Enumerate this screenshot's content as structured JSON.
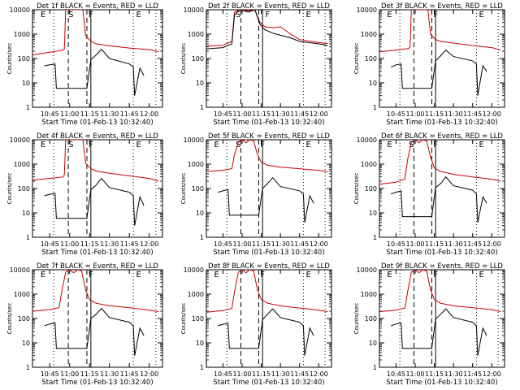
{
  "figure": {
    "ylabel": "Counts/sec",
    "xlabel": "Start Time (01-Feb-13 10:32:40)",
    "time_ticks": [
      "10:45",
      "11:00",
      "11:15",
      "11:30",
      "11:45",
      "12:00"
    ],
    "y_ticks": [
      "1",
      "10",
      "100",
      "1000",
      "10000"
    ],
    "colors": {
      "events": "#000000",
      "lld": "#cc0000",
      "axes": "#000000",
      "background": "#ffffff"
    }
  },
  "chart_data": [
    {
      "type": "line",
      "title": "Det 1f BLACK = Events, RED = LLD",
      "xlabel": "Start Time (01-Feb-13 10:32:40)",
      "ylabel": "Counts/sec",
      "x_range": [
        "10:32",
        "12:10"
      ],
      "y_range": [
        1,
        10000
      ],
      "y_scale": "log",
      "grid": false,
      "interval_labels": [
        {
          "letter": "E",
          "time": "10:40"
        },
        {
          "letter": "S",
          "time": "11:01"
        },
        {
          "letter": "F",
          "time": "11:16"
        },
        {
          "letter": "E",
          "time": "11:52"
        }
      ],
      "dotted_lines": [
        "10:48",
        "11:48",
        "12:05"
      ],
      "dashed_lines": [
        "10:59",
        "11:13"
      ],
      "solid_lines": [
        "11:16"
      ],
      "series": [
        {
          "color": "red",
          "x": [
            "10:32",
            "10:45",
            "10:55",
            "10:56",
            "10:57",
            "11:10",
            "11:12",
            "11:16",
            "11:20",
            "11:30",
            "11:45",
            "12:00",
            "12:07"
          ],
          "y": [
            140,
            180,
            220,
            250,
            12000,
            12000,
            900,
            500,
            400,
            330,
            270,
            230,
            190
          ]
        },
        {
          "color": "black",
          "x": [
            "10:41",
            "10:45",
            "10:49",
            "10:50",
            "11:13",
            "11:16",
            "11:20",
            "11:24",
            "11:30",
            "11:45",
            "11:48",
            "11:49",
            "11:53",
            "11:56"
          ],
          "y": [
            50,
            55,
            60,
            6,
            6,
            90,
            140,
            240,
            100,
            60,
            45,
            3,
            40,
            20
          ]
        }
      ]
    },
    {
      "type": "line",
      "title": "Det 2f BLACK = Events, RED = LLD",
      "xlabel": "Start Time (01-Feb-13 10:32:40)",
      "ylabel": "Counts/sec",
      "x_range": [
        "10:32",
        "12:10"
      ],
      "y_range": [
        1,
        10000
      ],
      "y_scale": "log",
      "grid": false,
      "interval_labels": [
        {
          "letter": "S",
          "time": "10:57"
        },
        {
          "letter": "F",
          "time": "11:20"
        },
        {
          "letter": "E",
          "time": "11:52"
        }
      ],
      "dotted_lines": [
        "10:48",
        "11:48",
        "12:05"
      ],
      "dashed_lines": [
        "10:59",
        "11:13"
      ],
      "solid_lines": [
        "11:16"
      ],
      "series": [
        {
          "color": "red",
          "x": [
            "10:32",
            "10:45",
            "10:52",
            "10:54",
            "10:58",
            "11:05",
            "11:10",
            "11:14",
            "11:18",
            "11:24",
            "11:30",
            "11:38",
            "11:45",
            "12:00",
            "12:07"
          ],
          "y": [
            320,
            350,
            500,
            8000,
            14000,
            9000,
            12000,
            3000,
            2000,
            1800,
            2000,
            1000,
            600,
            450,
            400
          ]
        },
        {
          "color": "black",
          "x": [
            "10:32",
            "10:45",
            "10:52",
            "10:54",
            "10:58",
            "11:05",
            "11:10",
            "11:14",
            "11:18",
            "11:24",
            "11:30",
            "11:38",
            "11:45",
            "12:00",
            "12:07"
          ],
          "y": [
            250,
            280,
            400,
            6000,
            12000,
            8000,
            10000,
            2500,
            1500,
            1100,
            900,
            700,
            500,
            400,
            340
          ]
        }
      ]
    },
    {
      "type": "line",
      "title": "Det 3f BLACK = Events, RED = LLD",
      "xlabel": "Start Time (01-Feb-13 10:32:40)",
      "ylabel": "Counts/sec",
      "x_range": [
        "10:32",
        "12:10"
      ],
      "y_range": [
        1,
        10000
      ],
      "y_scale": "log",
      "grid": false,
      "interval_labels": [
        {
          "letter": "E",
          "time": "10:40"
        },
        {
          "letter": "F",
          "time": "11:16"
        },
        {
          "letter": "E",
          "time": "11:52"
        }
      ],
      "dotted_lines": [
        "10:48",
        "11:48",
        "12:05"
      ],
      "dashed_lines": [
        "10:59",
        "11:13"
      ],
      "solid_lines": [
        "11:16"
      ],
      "series": [
        {
          "color": "red",
          "x": [
            "10:32",
            "10:45",
            "10:55",
            "10:56",
            "10:57",
            "11:10",
            "11:12",
            "11:16",
            "11:20",
            "11:30",
            "11:45",
            "12:00",
            "12:07"
          ],
          "y": [
            190,
            220,
            260,
            300,
            12000,
            12000,
            1000,
            600,
            500,
            430,
            340,
            280,
            220
          ]
        },
        {
          "color": "black",
          "x": [
            "10:41",
            "10:45",
            "10:49",
            "10:50",
            "11:13",
            "11:16",
            "11:20",
            "11:24",
            "11:30",
            "11:45",
            "11:48",
            "11:49",
            "11:53",
            "11:56"
          ],
          "y": [
            45,
            55,
            60,
            6,
            6,
            80,
            130,
            220,
            120,
            80,
            60,
            3,
            50,
            30
          ]
        }
      ]
    },
    {
      "type": "line",
      "title": "Det 4f BLACK = Events, RED = LLD",
      "xlabel": "Start Time (01-Feb-13 10:32:40)",
      "ylabel": "Counts/sec",
      "x_range": [
        "10:32",
        "12:10"
      ],
      "y_range": [
        1,
        10000
      ],
      "y_scale": "log",
      "grid": false,
      "interval_labels": [
        {
          "letter": "E",
          "time": "10:40"
        },
        {
          "letter": "S",
          "time": "11:01"
        },
        {
          "letter": "F",
          "time": "11:16"
        },
        {
          "letter": "E",
          "time": "11:52"
        }
      ],
      "dotted_lines": [
        "10:48",
        "11:48",
        "12:05"
      ],
      "dashed_lines": [
        "10:59",
        "11:13"
      ],
      "solid_lines": [
        "11:16"
      ],
      "series": [
        {
          "color": "red",
          "x": [
            "10:32",
            "10:45",
            "10:55",
            "10:56",
            "10:57",
            "11:10",
            "11:12",
            "11:16",
            "11:20",
            "11:30",
            "11:45",
            "12:00",
            "12:07"
          ],
          "y": [
            220,
            260,
            300,
            350,
            12000,
            12000,
            1100,
            650,
            520,
            420,
            330,
            260,
            200
          ]
        },
        {
          "color": "black",
          "x": [
            "10:41",
            "10:45",
            "10:49",
            "10:50",
            "11:13",
            "11:16",
            "11:20",
            "11:24",
            "11:30",
            "11:45",
            "11:48",
            "11:49",
            "11:53",
            "11:56"
          ],
          "y": [
            50,
            58,
            62,
            6,
            6,
            90,
            140,
            260,
            110,
            70,
            50,
            3,
            45,
            20
          ]
        }
      ]
    },
    {
      "type": "line",
      "title": "Det 5f BLACK = Events, RED = LLD",
      "xlabel": "Start Time (01-Feb-13 10:32:40)",
      "ylabel": "Counts/sec",
      "x_range": [
        "10:32",
        "12:10"
      ],
      "y_range": [
        1,
        10000
      ],
      "y_scale": "log",
      "grid": false,
      "interval_labels": [
        {
          "letter": "E",
          "time": "10:40"
        },
        {
          "letter": "S",
          "time": "10:57"
        },
        {
          "letter": "F",
          "time": "11:16"
        },
        {
          "letter": "E",
          "time": "11:52"
        }
      ],
      "dotted_lines": [
        "10:48",
        "11:48",
        "12:05"
      ],
      "dashed_lines": [
        "10:59",
        "11:13"
      ],
      "solid_lines": [
        "11:16"
      ],
      "series": [
        {
          "color": "red",
          "x": [
            "10:32",
            "10:45",
            "10:52",
            "10:54",
            "10:57",
            "11:00",
            "11:03",
            "11:06",
            "11:09",
            "11:12",
            "11:15",
            "11:20",
            "11:30",
            "11:45",
            "12:00",
            "12:07"
          ],
          "y": [
            500,
            560,
            650,
            2500,
            8000,
            11000,
            7500,
            11000,
            9000,
            2500,
            1200,
            900,
            750,
            650,
            550,
            500
          ]
        },
        {
          "color": "black",
          "x": [
            "10:41",
            "10:45",
            "10:49",
            "10:50",
            "11:13",
            "11:16",
            "11:20",
            "11:24",
            "11:30",
            "11:45",
            "11:48",
            "11:49",
            "11:53",
            "11:56"
          ],
          "y": [
            70,
            80,
            90,
            8,
            8,
            100,
            160,
            280,
            120,
            80,
            60,
            4,
            50,
            25
          ]
        }
      ]
    },
    {
      "type": "line",
      "title": "Det 6f BLACK = Events, RED = LLD",
      "xlabel": "Start Time (01-Feb-13 10:32:40)",
      "ylabel": "Counts/sec",
      "x_range": [
        "10:32",
        "12:10"
      ],
      "y_range": [
        1,
        10000
      ],
      "y_scale": "log",
      "grid": false,
      "interval_labels": [
        {
          "letter": "E",
          "time": "10:40"
        },
        {
          "letter": "S",
          "time": "10:57"
        },
        {
          "letter": "F",
          "time": "11:16"
        },
        {
          "letter": "E",
          "time": "11:52"
        }
      ],
      "dotted_lines": [
        "10:48",
        "11:48",
        "12:05"
      ],
      "dashed_lines": [
        "10:59",
        "11:13"
      ],
      "solid_lines": [
        "11:16"
      ],
      "series": [
        {
          "color": "red",
          "x": [
            "10:32",
            "10:45",
            "10:52",
            "10:54",
            "10:57",
            "11:00",
            "11:03",
            "11:06",
            "11:09",
            "11:12",
            "11:15",
            "11:20",
            "11:30",
            "11:45",
            "12:00",
            "12:07"
          ],
          "y": [
            150,
            180,
            250,
            1500,
            8000,
            11000,
            7500,
            11000,
            9000,
            2000,
            700,
            500,
            380,
            300,
            240,
            200
          ]
        },
        {
          "color": "black",
          "x": [
            "10:41",
            "10:45",
            "10:49",
            "10:50",
            "11:13",
            "11:16",
            "11:20",
            "11:24",
            "11:30",
            "11:45",
            "11:48",
            "11:49",
            "11:53",
            "11:56"
          ],
          "y": [
            60,
            70,
            80,
            7,
            7,
            110,
            160,
            300,
            130,
            85,
            60,
            4,
            45,
            25
          ]
        }
      ]
    },
    {
      "type": "line",
      "title": "Det 7f BLACK = Events, RED = LLD",
      "xlabel": "Start Time (01-Feb-13 10:32:40)",
      "ylabel": "Counts/sec",
      "x_range": [
        "10:32",
        "12:10"
      ],
      "y_range": [
        1,
        10000
      ],
      "y_scale": "log",
      "grid": false,
      "interval_labels": [
        {
          "letter": "E",
          "time": "10:40"
        },
        {
          "letter": "F",
          "time": "11:16"
        },
        {
          "letter": "E",
          "time": "11:52"
        }
      ],
      "dotted_lines": [
        "10:48",
        "11:48",
        "12:05"
      ],
      "dashed_lines": [
        "10:59",
        "11:13"
      ],
      "solid_lines": [
        "11:16"
      ],
      "series": [
        {
          "color": "red",
          "x": [
            "10:32",
            "10:45",
            "10:52",
            "10:54",
            "10:57",
            "11:00",
            "11:03",
            "11:06",
            "11:09",
            "11:12",
            "11:15",
            "11:20",
            "11:30",
            "11:45",
            "12:00",
            "12:07"
          ],
          "y": [
            200,
            230,
            280,
            1200,
            8000,
            11000,
            7500,
            11000,
            9000,
            1500,
            600,
            420,
            330,
            280,
            220,
            190
          ]
        },
        {
          "color": "black",
          "x": [
            "10:41",
            "10:45",
            "10:49",
            "10:50",
            "11:13",
            "11:16",
            "11:20",
            "11:24",
            "11:30",
            "11:45",
            "11:48",
            "11:49",
            "11:53",
            "11:56"
          ],
          "y": [
            50,
            60,
            65,
            6,
            6,
            100,
            150,
            260,
            110,
            70,
            50,
            3,
            40,
            20
          ]
        }
      ]
    },
    {
      "type": "line",
      "title": "Det 8f BLACK = Events, RED = LLD",
      "xlabel": "Start Time (01-Feb-13 10:32:40)",
      "ylabel": "Counts/sec",
      "x_range": [
        "10:32",
        "12:10"
      ],
      "y_range": [
        1,
        10000
      ],
      "y_scale": "log",
      "grid": false,
      "interval_labels": [
        {
          "letter": "E",
          "time": "10:40"
        },
        {
          "letter": "F",
          "time": "11:16"
        },
        {
          "letter": "E",
          "time": "11:52"
        }
      ],
      "dotted_lines": [
        "10:48",
        "11:48",
        "12:05"
      ],
      "dashed_lines": [
        "10:59",
        "11:13"
      ],
      "solid_lines": [
        "11:16"
      ],
      "series": [
        {
          "color": "red",
          "x": [
            "10:32",
            "10:45",
            "10:52",
            "10:54",
            "10:57",
            "11:00",
            "11:03",
            "11:06",
            "11:09",
            "11:12",
            "11:15",
            "11:20",
            "11:30",
            "11:45",
            "12:00",
            "12:07"
          ],
          "y": [
            180,
            210,
            260,
            1200,
            8000,
            11000,
            7500,
            11000,
            9000,
            1500,
            600,
            420,
            330,
            270,
            220,
            190
          ]
        },
        {
          "color": "black",
          "x": [
            "10:41",
            "10:45",
            "10:49",
            "10:50",
            "11:13",
            "11:16",
            "11:20",
            "11:24",
            "11:30",
            "11:45",
            "11:48",
            "11:49",
            "11:53",
            "11:56"
          ],
          "y": [
            50,
            58,
            62,
            6,
            6,
            90,
            150,
            250,
            110,
            70,
            50,
            3,
            40,
            20
          ]
        }
      ]
    },
    {
      "type": "line",
      "title": "Det 9f BLACK = Events, RED = LLD",
      "xlabel": "Start Time (01-Feb-13 10:32:40)",
      "ylabel": "Counts/sec",
      "x_range": [
        "10:32",
        "12:10"
      ],
      "y_range": [
        1,
        10000
      ],
      "y_scale": "log",
      "grid": false,
      "interval_labels": [
        {
          "letter": "E",
          "time": "10:40"
        },
        {
          "letter": "F",
          "time": "11:16"
        },
        {
          "letter": "E",
          "time": "11:52"
        }
      ],
      "dotted_lines": [
        "10:48",
        "11:48",
        "12:05"
      ],
      "dashed_lines": [
        "10:59",
        "11:13"
      ],
      "solid_lines": [
        "11:16"
      ],
      "series": [
        {
          "color": "red",
          "x": [
            "10:32",
            "10:45",
            "10:52",
            "10:54",
            "10:57",
            "11:00",
            "11:03",
            "11:06",
            "11:09",
            "11:12",
            "11:15",
            "11:20",
            "11:30",
            "11:45",
            "12:00",
            "12:07"
          ],
          "y": [
            190,
            220,
            270,
            1200,
            8000,
            11000,
            7500,
            11000,
            9000,
            1500,
            600,
            420,
            330,
            280,
            230,
            190
          ]
        },
        {
          "color": "black",
          "x": [
            "10:41",
            "10:45",
            "10:49",
            "10:50",
            "11:13",
            "11:16",
            "11:20",
            "11:24",
            "11:30",
            "11:45",
            "11:48",
            "11:49",
            "11:53",
            "11:56"
          ],
          "y": [
            50,
            60,
            65,
            6,
            6,
            95,
            150,
            250,
            110,
            70,
            50,
            3,
            40,
            20
          ]
        }
      ]
    }
  ]
}
